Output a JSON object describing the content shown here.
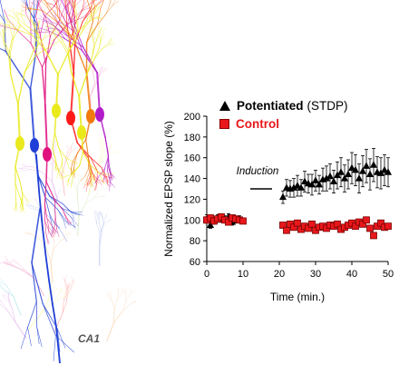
{
  "figure": {
    "region_label": "CA1",
    "neuron_colors": [
      "#1f3fd6",
      "#e0117f",
      "#ff1a1a",
      "#e9e91c",
      "#f07a0d",
      "#b21cc8",
      "#25b8c9",
      "#7fbe3f"
    ]
  },
  "legend": {
    "potentiated_label": "Potentiated",
    "potentiated_sub": "(STDP)",
    "control_label": "Control",
    "potentiated_color": "#000000",
    "control_color": "#e8171b"
  },
  "chart_data": {
    "type": "scatter",
    "xlabel": "Time (min.)",
    "ylabel": "Normalized EPSP slope (%)",
    "xlim": [
      0,
      50
    ],
    "ylim": [
      60,
      200
    ],
    "xticks": [
      0,
      10,
      20,
      30,
      40,
      50
    ],
    "yticks": [
      60,
      80,
      100,
      120,
      140,
      160,
      180,
      200
    ],
    "annotation": {
      "text": "Induction",
      "bar_x": [
        12,
        18
      ],
      "bar_y": 130
    },
    "series": [
      {
        "name": "Potentiated (STDP)",
        "marker": "triangle",
        "color": "#000000",
        "points": [
          {
            "x": 0,
            "y": 101,
            "err": 4
          },
          {
            "x": 1,
            "y": 95,
            "err": 3
          },
          {
            "x": 2,
            "y": 99,
            "err": 3
          },
          {
            "x": 3,
            "y": 102,
            "err": 3
          },
          {
            "x": 4,
            "y": 100,
            "err": 2
          },
          {
            "x": 5,
            "y": 101,
            "err": 3
          },
          {
            "x": 6,
            "y": 103,
            "err": 3
          },
          {
            "x": 7,
            "y": 98,
            "err": 3
          },
          {
            "x": 8,
            "y": 100,
            "err": 3
          },
          {
            "x": 9,
            "y": 101,
            "err": 3
          },
          {
            "x": 21,
            "y": 122,
            "err": 6
          },
          {
            "x": 22,
            "y": 131,
            "err": 8
          },
          {
            "x": 23,
            "y": 130,
            "err": 8
          },
          {
            "x": 24,
            "y": 131,
            "err": 9
          },
          {
            "x": 25,
            "y": 133,
            "err": 10
          },
          {
            "x": 26,
            "y": 131,
            "err": 8
          },
          {
            "x": 27,
            "y": 137,
            "err": 10
          },
          {
            "x": 28,
            "y": 135,
            "err": 9
          },
          {
            "x": 29,
            "y": 134,
            "err": 10
          },
          {
            "x": 30,
            "y": 138,
            "err": 10
          },
          {
            "x": 31,
            "y": 134,
            "err": 9
          },
          {
            "x": 32,
            "y": 139,
            "err": 11
          },
          {
            "x": 33,
            "y": 140,
            "err": 12
          },
          {
            "x": 34,
            "y": 142,
            "err": 12
          },
          {
            "x": 35,
            "y": 137,
            "err": 11
          },
          {
            "x": 36,
            "y": 143,
            "err": 13
          },
          {
            "x": 37,
            "y": 146,
            "err": 14
          },
          {
            "x": 38,
            "y": 140,
            "err": 13
          },
          {
            "x": 39,
            "y": 144,
            "err": 14
          },
          {
            "x": 40,
            "y": 150,
            "err": 15
          },
          {
            "x": 41,
            "y": 148,
            "err": 15
          },
          {
            "x": 42,
            "y": 140,
            "err": 14
          },
          {
            "x": 43,
            "y": 147,
            "err": 15
          },
          {
            "x": 44,
            "y": 152,
            "err": 16
          },
          {
            "x": 45,
            "y": 144,
            "err": 15
          },
          {
            "x": 46,
            "y": 153,
            "err": 16
          },
          {
            "x": 47,
            "y": 146,
            "err": 15
          },
          {
            "x": 48,
            "y": 145,
            "err": 15
          },
          {
            "x": 49,
            "y": 148,
            "err": 15
          },
          {
            "x": 50,
            "y": 146,
            "err": 14
          }
        ]
      },
      {
        "name": "Control",
        "marker": "square",
        "color": "#e8171b",
        "points": [
          {
            "x": 0,
            "y": 100,
            "err": 2
          },
          {
            "x": 1,
            "y": 102,
            "err": 2
          },
          {
            "x": 2,
            "y": 99,
            "err": 2
          },
          {
            "x": 3,
            "y": 101,
            "err": 2
          },
          {
            "x": 4,
            "y": 103,
            "err": 2
          },
          {
            "x": 5,
            "y": 100,
            "err": 2
          },
          {
            "x": 6,
            "y": 98,
            "err": 2
          },
          {
            "x": 7,
            "y": 102,
            "err": 2
          },
          {
            "x": 8,
            "y": 101,
            "err": 2
          },
          {
            "x": 9,
            "y": 100,
            "err": 2
          },
          {
            "x": 10,
            "y": 99,
            "err": 2
          },
          {
            "x": 21,
            "y": 95,
            "err": 2
          },
          {
            "x": 22,
            "y": 90,
            "err": 2
          },
          {
            "x": 23,
            "y": 96,
            "err": 2
          },
          {
            "x": 24,
            "y": 93,
            "err": 2
          },
          {
            "x": 25,
            "y": 97,
            "err": 2
          },
          {
            "x": 26,
            "y": 91,
            "err": 2
          },
          {
            "x": 27,
            "y": 94,
            "err": 2
          },
          {
            "x": 28,
            "y": 92,
            "err": 2
          },
          {
            "x": 29,
            "y": 96,
            "err": 2
          },
          {
            "x": 30,
            "y": 90,
            "err": 2
          },
          {
            "x": 31,
            "y": 93,
            "err": 2
          },
          {
            "x": 32,
            "y": 94,
            "err": 2
          },
          {
            "x": 33,
            "y": 92,
            "err": 2
          },
          {
            "x": 34,
            "y": 95,
            "err": 2
          },
          {
            "x": 35,
            "y": 94,
            "err": 2
          },
          {
            "x": 36,
            "y": 96,
            "err": 2
          },
          {
            "x": 37,
            "y": 91,
            "err": 2
          },
          {
            "x": 38,
            "y": 93,
            "err": 2
          },
          {
            "x": 39,
            "y": 95,
            "err": 2
          },
          {
            "x": 40,
            "y": 97,
            "err": 2
          },
          {
            "x": 41,
            "y": 94,
            "err": 2
          },
          {
            "x": 42,
            "y": 98,
            "err": 2
          },
          {
            "x": 43,
            "y": 96,
            "err": 2
          },
          {
            "x": 44,
            "y": 100,
            "err": 2
          },
          {
            "x": 45,
            "y": 92,
            "err": 2
          },
          {
            "x": 46,
            "y": 85,
            "err": 2
          },
          {
            "x": 47,
            "y": 94,
            "err": 2
          },
          {
            "x": 48,
            "y": 97,
            "err": 2
          },
          {
            "x": 49,
            "y": 93,
            "err": 2
          },
          {
            "x": 50,
            "y": 94,
            "err": 2
          }
        ]
      }
    ]
  }
}
